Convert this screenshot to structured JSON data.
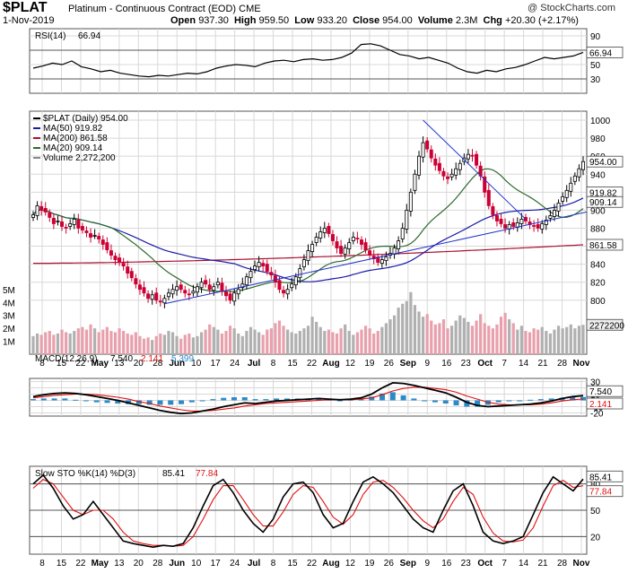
{
  "header": {
    "symbol": "$PLAT",
    "name": "Platinum - Continuous Contract (EOD)",
    "exchange": "CME",
    "date": "1-Nov-2019",
    "open_label": "Open",
    "open": "937.30",
    "high_label": "High",
    "high": "959.50",
    "low_label": "Low",
    "low": "933.20",
    "close_label": "Close",
    "close": "954.00",
    "volume_label": "Volume",
    "volume": "2.3M",
    "chg_label": "Chg",
    "chg": "+20.30 (+2.17%)",
    "watermark": "@ StockCharts.com"
  },
  "colors": {
    "up": "#000000",
    "down": "#cc0033",
    "ma50": "#1a1aa8",
    "ma200": "#aa1133",
    "ma20": "#2a6a2a",
    "trend": "#2233cc",
    "volume": "#b0b0b0",
    "macd_hist": "#2a8ac8",
    "signal": "#e01010",
    "grid": "#d8d8d8"
  },
  "chart_data": [
    {
      "type": "line",
      "title": "RSI(14) 66.94",
      "label": "RSI(14)",
      "value_label": "66.94",
      "ylim": [
        10,
        100
      ],
      "yticks": [
        "90",
        "70",
        "50",
        "30"
      ],
      "levels": [
        70,
        30
      ],
      "series": [
        {
          "name": "RSI(14)",
          "values": [
            45,
            48,
            52,
            50,
            55,
            47,
            44,
            40,
            42,
            38,
            36,
            34,
            33,
            35,
            34,
            36,
            38,
            37,
            40,
            45,
            48,
            50,
            49,
            47,
            52,
            55,
            56,
            54,
            57,
            58,
            56,
            57,
            60,
            66,
            78,
            79,
            76,
            70,
            64,
            62,
            58,
            60,
            56,
            52,
            45,
            40,
            38,
            42,
            40,
            44,
            46,
            50,
            55,
            60,
            58,
            60,
            62,
            66.94
          ]
        }
      ]
    },
    {
      "type": "candlestick",
      "title": "$PLAT (Daily) 954.00",
      "ylim": [
        740,
        1010
      ],
      "yticks": [
        "1000",
        "980",
        "960",
        "940",
        "920",
        "900",
        "880",
        "860",
        "840",
        "820",
        "800"
      ],
      "price_tags": [
        "954.00",
        "919.82",
        "909.14",
        "861.58"
      ],
      "volume_ticks": [
        "5M",
        "4M",
        "3M",
        "2M",
        "1M"
      ],
      "volume_value": "2272200",
      "legend": [
        {
          "name": "$PLAT (Daily) 954.00",
          "color": "#000000"
        },
        {
          "name": "MA(50) 919.82",
          "color": "#1a1aa8"
        },
        {
          "name": "MA(200) 861.58",
          "color": "#aa1133"
        },
        {
          "name": "MA(20) 909.14",
          "color": "#2a6a2a"
        },
        {
          "name": "Volume 2,272,200",
          "color": "#888888"
        }
      ],
      "close": [
        895,
        905,
        900,
        898,
        892,
        885,
        888,
        882,
        880,
        885,
        890,
        880,
        878,
        875,
        870,
        872,
        868,
        862,
        856,
        850,
        845,
        842,
        838,
        830,
        825,
        818,
        812,
        808,
        802,
        806,
        800,
        798,
        802,
        808,
        812,
        815,
        812,
        808,
        806,
        810,
        815,
        820,
        818,
        812,
        815,
        820,
        810,
        805,
        800,
        808,
        812,
        818,
        826,
        832,
        838,
        842,
        838,
        832,
        828,
        820,
        812,
        808,
        812,
        818,
        826,
        835,
        845,
        855,
        862,
        870,
        876,
        880,
        874,
        866,
        858,
        852,
        858,
        864,
        870,
        868,
        862,
        856,
        850,
        846,
        842,
        845,
        848,
        852,
        858,
        866,
        880,
        900,
        920,
        940,
        960,
        975,
        968,
        958,
        950,
        944,
        938,
        935,
        940,
        946,
        952,
        958,
        962,
        960,
        950,
        938,
        920,
        905,
        895,
        888,
        885,
        880,
        884,
        882,
        886,
        890,
        888,
        884,
        882,
        880,
        885,
        889,
        894,
        900,
        908,
        915,
        922,
        930,
        938,
        946,
        954
      ],
      "volume_millions": [
        1.4,
        1.6,
        1.5,
        1.7,
        1.8,
        1.5,
        1.6,
        1.9,
        1.7,
        1.6,
        1.8,
        2.0,
        2.1,
        1.9,
        2.3,
        2.0,
        1.7,
        1.9,
        2.1,
        1.8,
        1.7,
        2.0,
        1.8,
        1.6,
        1.5,
        1.7,
        1.4,
        1.2,
        1.3,
        1.1,
        1.4,
        1.6,
        1.5,
        1.8,
        1.7,
        1.4,
        1.2,
        1.5,
        1.6,
        1.3,
        1.4,
        1.7,
        1.9,
        2.3,
        2.1,
        1.9,
        1.6,
        1.8,
        2.2,
        2.0,
        1.6,
        1.4,
        1.8,
        2.1,
        1.9,
        1.7,
        1.5,
        1.9,
        2.0,
        2.4,
        2.6,
        2.2,
        1.9,
        1.7,
        1.6,
        1.8,
        2.0,
        2.2,
        2.9,
        2.5,
        2.1,
        1.8,
        1.9,
        1.7,
        1.6,
        2.0,
        2.3,
        1.8,
        1.5,
        1.7,
        1.9,
        2.2,
        2.0,
        1.6,
        1.8,
        2.1,
        2.4,
        2.7,
        3.0,
        3.6,
        3.9,
        4.1,
        4.8,
        3.8,
        3.3,
        2.9,
        3.1,
        2.6,
        2.3,
        2.4,
        2.7,
        2.0,
        2.2,
        2.6,
        3.0,
        2.8,
        2.5,
        2.2,
        2.6,
        3.1,
        2.4,
        2.2,
        2.0,
        2.3,
        2.9,
        3.2,
        2.7,
        2.4,
        1.9,
        2.2,
        1.8,
        1.7,
        2.0,
        1.9,
        2.1,
        1.8,
        1.6,
        1.9,
        2.2,
        2.0,
        2.1,
        2.3,
        2.0,
        2.2,
        2.27
      ]
    },
    {
      "type": "line",
      "title": "MACD(12,26,9) 7.540, 2.141, 5.399",
      "label": "MACD(12,26,9)",
      "value_labels": [
        "7.540",
        "2.141",
        "5.399"
      ],
      "ylim": [
        -25,
        35
      ],
      "yticks": [
        "30",
        "20",
        "10",
        "0",
        "-10",
        "-20"
      ],
      "price_tags": [
        "7.540",
        "2.141"
      ],
      "series": [
        {
          "name": "MACD",
          "values": [
            6,
            9,
            11,
            12,
            11,
            9,
            6,
            3,
            0,
            -4,
            -8,
            -12,
            -16,
            -19,
            -21,
            -20,
            -17,
            -14,
            -10,
            -7,
            -4,
            -5,
            -3,
            -1,
            0,
            1,
            2,
            3,
            2,
            1,
            2,
            4,
            10,
            20,
            28,
            27,
            24,
            20,
            16,
            12,
            5,
            -3,
            -8,
            -10,
            -9,
            -8,
            -7,
            -6,
            -4,
            -1,
            3,
            6,
            7.54
          ]
        },
        {
          "name": "Signal",
          "values": [
            4,
            6,
            8,
            9,
            10,
            10,
            9,
            7,
            5,
            2,
            -2,
            -5,
            -9,
            -12,
            -15,
            -17,
            -17,
            -16,
            -14,
            -12,
            -9,
            -7,
            -5,
            -4,
            -3,
            -2,
            -1,
            0,
            1,
            1,
            1,
            2,
            4,
            9,
            15,
            19,
            21,
            21,
            19,
            17,
            13,
            7,
            2,
            -3,
            -6,
            -7,
            -7,
            -7,
            -6,
            -4,
            -1,
            1,
            2.141
          ]
        }
      ]
    },
    {
      "type": "line",
      "title": "Slow STO %K(14) %D(3) 85.41, 77.84",
      "label": "Slow STO %K(14) %D(3)",
      "value_labels": [
        "85.41",
        "77.84"
      ],
      "ylim": [
        0,
        100
      ],
      "yticks": [
        "80",
        "50",
        "20"
      ],
      "levels": [
        80,
        50,
        20
      ],
      "price_tags": [
        "85.41",
        "77.84"
      ],
      "series": [
        {
          "name": "%K",
          "values": [
            80,
            90,
            75,
            55,
            40,
            45,
            60,
            45,
            30,
            15,
            12,
            10,
            8,
            10,
            9,
            12,
            30,
            55,
            78,
            85,
            70,
            50,
            35,
            25,
            40,
            65,
            80,
            82,
            70,
            45,
            30,
            35,
            60,
            82,
            88,
            80,
            70,
            55,
            40,
            30,
            25,
            50,
            72,
            80,
            55,
            25,
            15,
            12,
            15,
            20,
            45,
            70,
            88,
            80,
            72,
            85.41
          ]
        },
        {
          "name": "%D",
          "values": [
            75,
            85,
            80,
            65,
            50,
            45,
            50,
            50,
            40,
            25,
            15,
            12,
            10,
            10,
            9,
            10,
            20,
            40,
            62,
            78,
            78,
            62,
            45,
            32,
            32,
            48,
            68,
            78,
            76,
            60,
            42,
            34,
            45,
            68,
            82,
            84,
            76,
            64,
            50,
            38,
            30,
            40,
            60,
            76,
            68,
            42,
            24,
            15,
            14,
            16,
            30,
            55,
            78,
            84,
            76,
            77.84
          ]
        }
      ]
    }
  ],
  "x_axis": {
    "labels": [
      "8",
      "15",
      "22",
      "May",
      "13",
      "20",
      "28",
      "Jun",
      "10",
      "17",
      "24",
      "Jul",
      "8",
      "15",
      "22",
      "Aug",
      "12",
      "19",
      "26",
      "Sep",
      "9",
      "16",
      "23",
      "Oct",
      "7",
      "14",
      "21",
      "28",
      "Nov"
    ]
  }
}
